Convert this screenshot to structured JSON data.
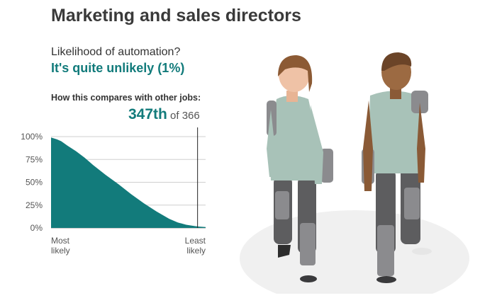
{
  "title": "Marketing and sales directors",
  "question": "Likelihood of automation?",
  "answer": "It's quite unlikely (1%)",
  "compare_label": "How this compares with other jobs:",
  "rank": {
    "position": "347th",
    "of_text": "of 366"
  },
  "colors": {
    "accent": "#127b7b",
    "area": "#127b7b",
    "marker": "#222222"
  },
  "chart_data": {
    "type": "area",
    "title": "",
    "xlabel": "",
    "ylabel": "",
    "ylim": [
      0,
      100
    ],
    "y_ticks": [
      "0%",
      "25%",
      "50%",
      "75%",
      "100%"
    ],
    "y_tick_values": [
      0,
      25,
      50,
      75,
      100
    ],
    "x_labels": {
      "left": [
        "Most",
        "likely"
      ],
      "right": [
        "Least",
        "likely"
      ]
    },
    "grid": true,
    "x_rank_range": [
      1,
      366
    ],
    "marker_rank": 347,
    "series": [
      {
        "x": [
          1,
          15,
          25,
          40,
          60,
          80,
          100,
          130,
          160,
          190,
          220,
          250,
          280,
          300,
          320,
          340,
          350,
          366
        ],
        "y": [
          99,
          97,
          95,
          90,
          84,
          77,
          69,
          58,
          48,
          37,
          27,
          18,
          10,
          6,
          3.5,
          2,
          1.5,
          1
        ]
      }
    ]
  },
  "illustration": {
    "figures": [
      "woman-robot-legs",
      "man-robot-legs"
    ],
    "colors": {
      "shirt": "#a8c2b8",
      "trousers": "#5d5d5f",
      "robot": "#8b8b8e",
      "floor": "#f0f0f0"
    }
  }
}
